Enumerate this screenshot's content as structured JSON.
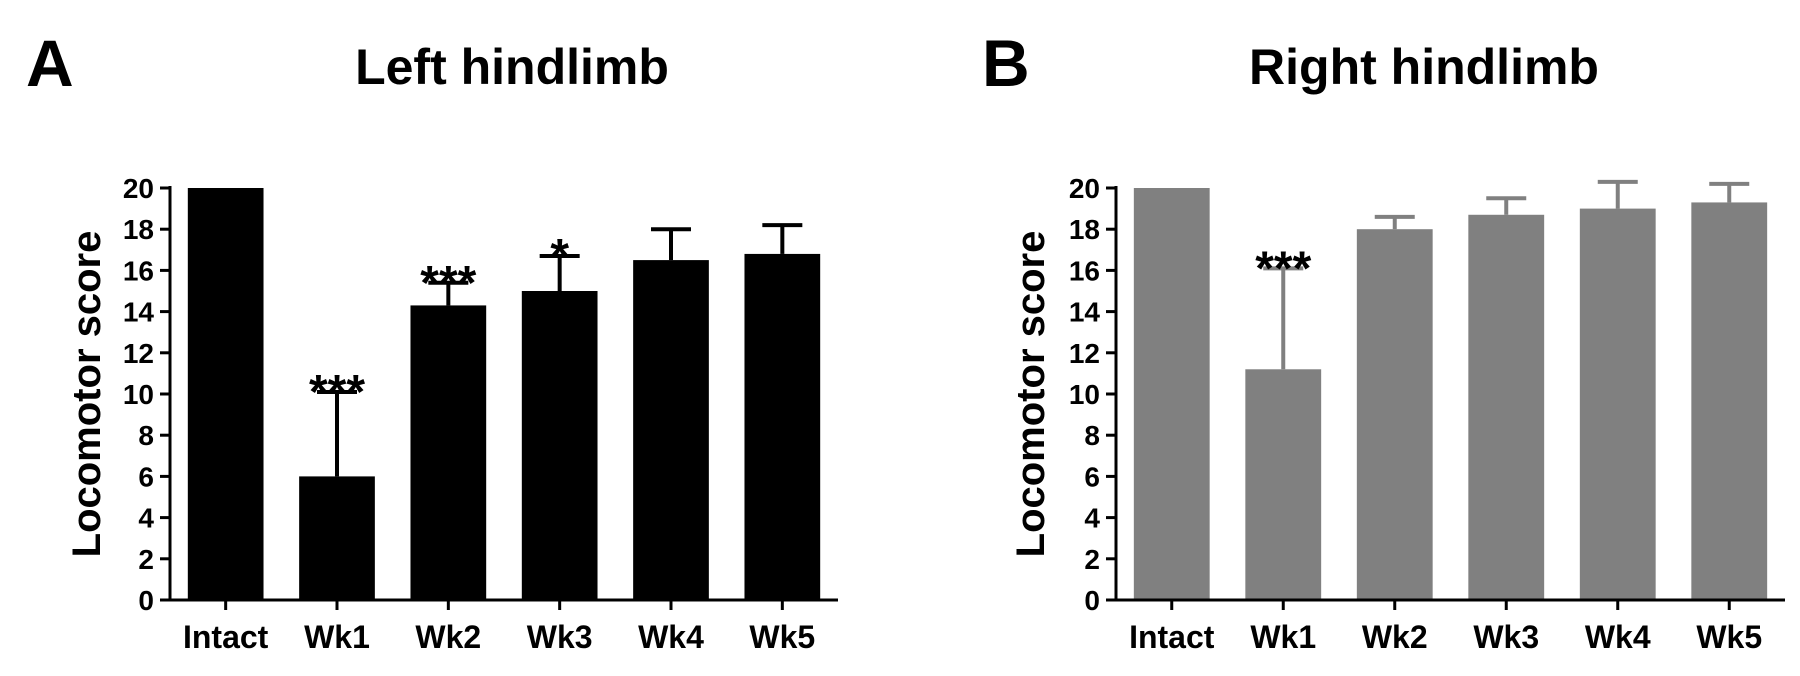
{
  "chart_data": [
    {
      "type": "bar",
      "panel_label": "A",
      "title": "Left hindlimb",
      "xlabel": "",
      "ylabel": "Locomotor score",
      "ylim": [
        0,
        20
      ],
      "yticks": [
        0,
        2,
        4,
        6,
        8,
        10,
        12,
        14,
        16,
        18,
        20
      ],
      "categories": [
        "Intact",
        "Wk1",
        "Wk2",
        "Wk3",
        "Wk4",
        "Wk5"
      ],
      "values": [
        20,
        6.0,
        14.3,
        15.0,
        16.5,
        16.8
      ],
      "errors": [
        0,
        4.1,
        1.1,
        1.7,
        1.5,
        1.4
      ],
      "significance": [
        "",
        "***",
        "***",
        "*",
        "",
        ""
      ],
      "bar_color": "#000000"
    },
    {
      "type": "bar",
      "panel_label": "B",
      "title": "Right hindlimb",
      "xlabel": "",
      "ylabel": "Locomotor score",
      "ylim": [
        0,
        20
      ],
      "yticks": [
        0,
        2,
        4,
        6,
        8,
        10,
        12,
        14,
        16,
        18,
        20
      ],
      "categories": [
        "Intact",
        "Wk1",
        "Wk2",
        "Wk3",
        "Wk4",
        "Wk5"
      ],
      "values": [
        20,
        11.2,
        18.0,
        18.7,
        19.0,
        19.3
      ],
      "errors": [
        0,
        4.9,
        0.6,
        0.8,
        1.3,
        0.9
      ],
      "significance": [
        "",
        "***",
        "",
        "",
        "",
        ""
      ],
      "bar_color": "#808080"
    }
  ]
}
